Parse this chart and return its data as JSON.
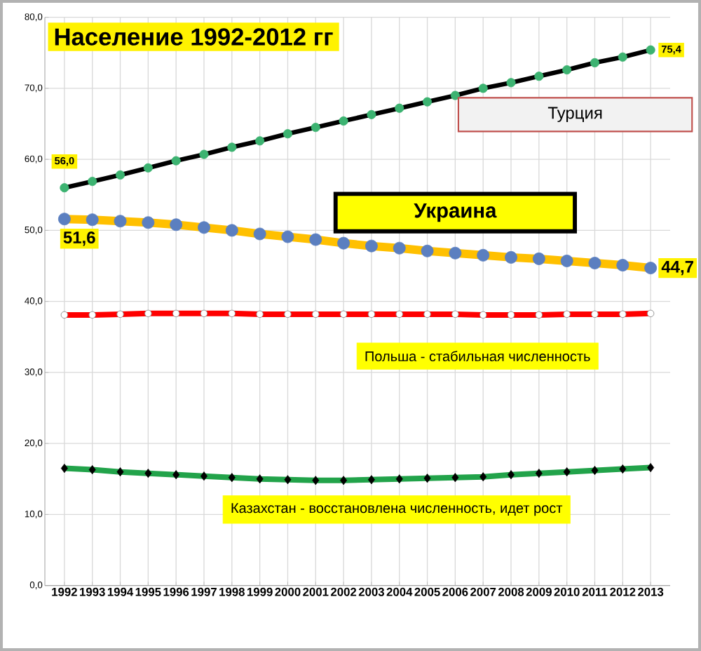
{
  "chart_data": {
    "type": "line",
    "title": "Население 1992-2012 гг",
    "categories": [
      "1992",
      "1993",
      "1994",
      "1995",
      "1996",
      "1997",
      "1998",
      "1999",
      "2000",
      "2001",
      "2002",
      "2003",
      "2004",
      "2005",
      "2006",
      "2007",
      "2008",
      "2009",
      "2010",
      "2011",
      "2012",
      "2013"
    ],
    "series": [
      {
        "name": "Турция",
        "color": "#000000",
        "marker": "circle",
        "values": [
          56.0,
          56.9,
          57.8,
          58.8,
          59.8,
          60.7,
          61.7,
          62.6,
          63.6,
          64.5,
          65.4,
          66.3,
          67.2,
          68.1,
          69.0,
          70.0,
          70.8,
          71.7,
          72.6,
          73.6,
          74.4,
          75.4
        ],
        "value_labels": [
          "56,0",
          null,
          null,
          null,
          null,
          null,
          null,
          null,
          null,
          null,
          null,
          null,
          null,
          null,
          null,
          null,
          null,
          null,
          null,
          null,
          null,
          "75,4"
        ]
      },
      {
        "name": "Украина",
        "color": "#ffc000",
        "marker": "circle",
        "values": [
          51.6,
          51.5,
          51.3,
          51.1,
          50.8,
          50.4,
          50.0,
          49.5,
          49.1,
          48.7,
          48.2,
          47.8,
          47.5,
          47.1,
          46.8,
          46.5,
          46.2,
          46.0,
          45.7,
          45.4,
          45.1,
          44.7
        ],
        "value_labels": [
          "51,6",
          null,
          null,
          null,
          null,
          null,
          null,
          null,
          null,
          null,
          null,
          null,
          null,
          null,
          null,
          null,
          null,
          null,
          null,
          null,
          null,
          "44,7"
        ]
      },
      {
        "name": "Польша - стабильная численность",
        "color": "#ff0000",
        "marker": "circle",
        "values": [
          38.1,
          38.1,
          38.2,
          38.3,
          38.3,
          38.3,
          38.3,
          38.2,
          38.2,
          38.2,
          38.2,
          38.2,
          38.2,
          38.2,
          38.2,
          38.1,
          38.1,
          38.1,
          38.2,
          38.2,
          38.2,
          38.3
        ]
      },
      {
        "name": "Казахстан - восстановлена  численность, идет рост",
        "color": "#22a34a",
        "marker": "diamond",
        "values": [
          16.5,
          16.3,
          16.0,
          15.8,
          15.6,
          15.4,
          15.2,
          15.0,
          14.9,
          14.8,
          14.8,
          14.9,
          15.0,
          15.1,
          15.2,
          15.3,
          15.6,
          15.8,
          16.0,
          16.2,
          16.4,
          16.6
        ]
      }
    ],
    "ylim": [
      0,
      80
    ],
    "yticks": [
      {
        "value": 0,
        "label": "0,0"
      },
      {
        "value": 10,
        "label": "10,0"
      },
      {
        "value": 20,
        "label": "20,0"
      },
      {
        "value": 30,
        "label": "30,0"
      },
      {
        "value": 40,
        "label": "40,0"
      },
      {
        "value": 50,
        "label": "50,0"
      },
      {
        "value": 60,
        "label": "60,0"
      },
      {
        "value": 70,
        "label": "70,0"
      },
      {
        "value": 80,
        "label": "80,0"
      }
    ],
    "grid": true,
    "legend": false
  }
}
